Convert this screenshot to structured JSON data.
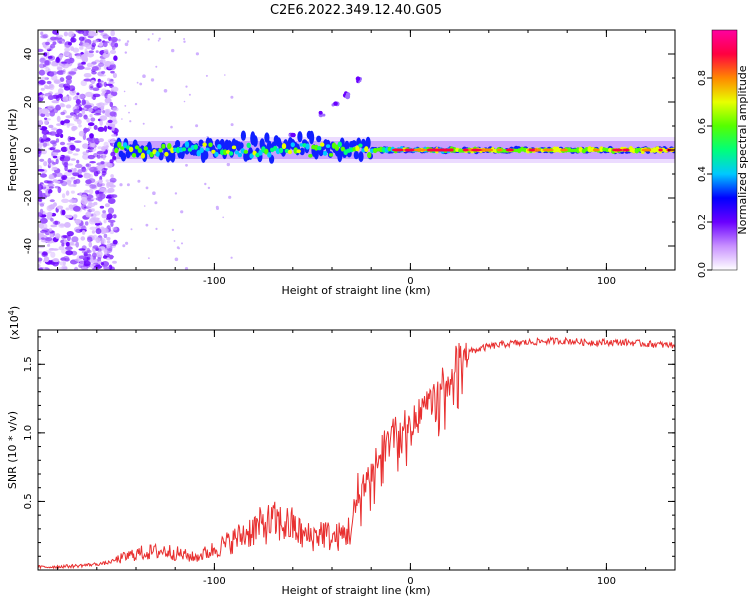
{
  "figure": {
    "title": "C2E6.2022.349.12.40.G05"
  },
  "chart_data": [
    {
      "type": "heatmap",
      "xlabel": "Height of straight line (km)",
      "ylabel": "Frequency (Hz)",
      "xlim": [
        -190,
        135
      ],
      "ylim": [
        -50,
        50
      ],
      "x_ticks": [
        -100,
        0,
        100
      ],
      "y_ticks": [
        -40,
        -20,
        0,
        20,
        40
      ],
      "colorbar": {
        "label": "Normalized spectral amplitude",
        "range": [
          0.0,
          1.0
        ],
        "ticks": [
          0.0,
          0.2,
          0.4,
          0.6,
          0.8
        ],
        "colors": [
          "#ffffff",
          "#c890ff",
          "#6a00ff",
          "#0000ff",
          "#00c8ff",
          "#00ff7a",
          "#55ff00",
          "#e8ff00",
          "#ff8800",
          "#ff0040",
          "#ff00a0"
        ]
      },
      "ridge": {
        "x_start": -150,
        "x_end": 135,
        "center_freq_hz": 0,
        "branch": [
          [
            -60,
            6
          ],
          [
            -45,
            15
          ],
          [
            -38,
            19
          ],
          [
            -33,
            23
          ],
          [
            -27,
            29
          ]
        ]
      },
      "noise_region_x": [
        -190,
        -150
      ]
    },
    {
      "type": "line",
      "xlabel": "Height of straight line (km)",
      "ylabel": "SNR (10 * v/v)",
      "y_multiplier_label": "(x10",
      "y_multiplier_exp": "4",
      "y_multiplier_close": ")",
      "xlim": [
        -190,
        135
      ],
      "ylim": [
        0,
        17500
      ],
      "x_ticks": [
        -100,
        0,
        100
      ],
      "y_ticks": [
        5000,
        10000,
        15000
      ],
      "y_tick_labels": [
        "0.5",
        "1.0",
        "1.5"
      ],
      "line_color": "#e83030",
      "series": [
        {
          "x": [
            -190,
            -170,
            -155,
            -140,
            -125,
            -110,
            -100,
            -90,
            -80,
            -70,
            -60,
            -55,
            -50,
            -45,
            -40,
            -35,
            -30,
            -27,
            -24,
            -20,
            -15,
            -10,
            -5,
            0,
            5,
            10,
            15,
            20,
            25,
            30,
            40,
            50,
            60,
            70,
            80,
            90,
            100,
            110,
            120,
            130,
            135
          ],
          "y": [
            200,
            300,
            500,
            1200,
            1400,
            900,
            1500,
            2200,
            3000,
            3500,
            3200,
            2500,
            2400,
            2800,
            2300,
            2500,
            3000,
            5000,
            6200,
            7000,
            8600,
            9600,
            10200,
            10600,
            11400,
            12400,
            13500,
            14500,
            15400,
            15900,
            16300,
            16500,
            16600,
            16700,
            16700,
            16600,
            16600,
            16600,
            16500,
            16400,
            16400
          ]
        }
      ]
    }
  ]
}
